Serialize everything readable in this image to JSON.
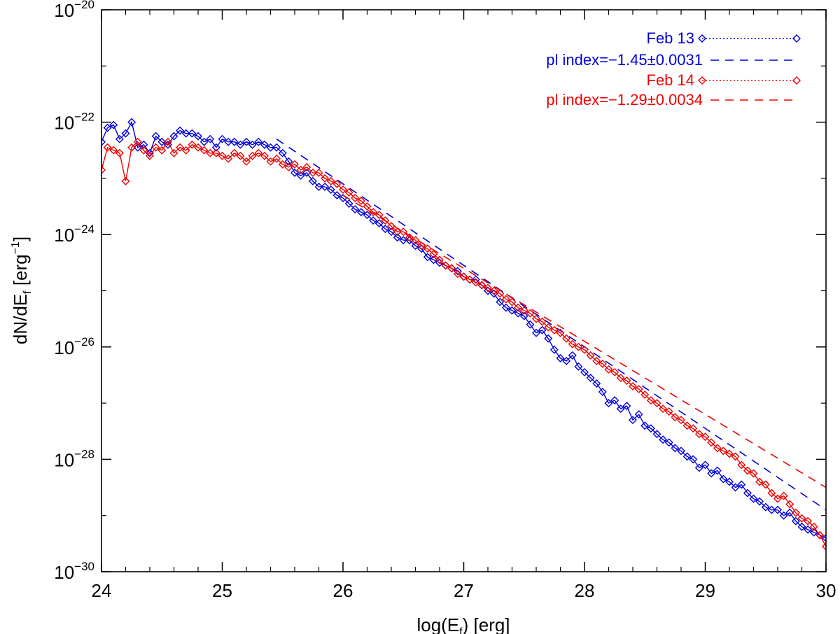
{
  "chart_data": {
    "type": "line",
    "title": "",
    "xlabel": "log(E_f) [erg]",
    "ylabel": "dN/dE_f [erg^-1]",
    "xlim": [
      24,
      30
    ],
    "ylim_log10": [
      -30,
      -20
    ],
    "x_ticks": [
      "24",
      "25",
      "26",
      "27",
      "28",
      "29",
      "30"
    ],
    "y_tick_base": "10",
    "y_ticks_exp": [
      "-30",
      "-28",
      "-26",
      "-24",
      "-22",
      "-20"
    ],
    "grid": false,
    "legend_position": "top-right",
    "series": [
      {
        "name": "Feb 13",
        "color": "#0000dd",
        "marker": "diamond",
        "fit_label": "pl index=−1.45±0.0031",
        "fit": {
          "x": [
            25.45,
            30.0
          ],
          "log10_y": [
            -22.3,
            -28.9
          ]
        },
        "points": [
          [
            24.0,
            -22.35
          ],
          [
            24.05,
            -22.1
          ],
          [
            24.1,
            -22.05
          ],
          [
            24.15,
            -22.3
          ],
          [
            24.2,
            -22.2
          ],
          [
            24.25,
            -22.0
          ],
          [
            24.3,
            -22.45
          ],
          [
            24.35,
            -22.4
          ],
          [
            24.4,
            -22.55
          ],
          [
            24.45,
            -22.25
          ],
          [
            24.5,
            -22.35
          ],
          [
            24.55,
            -22.4
          ],
          [
            24.6,
            -22.25
          ],
          [
            24.65,
            -22.15
          ],
          [
            24.7,
            -22.2
          ],
          [
            24.75,
            -22.2
          ],
          [
            24.8,
            -22.25
          ],
          [
            24.85,
            -22.35
          ],
          [
            24.9,
            -22.3
          ],
          [
            24.95,
            -22.45
          ],
          [
            25.0,
            -22.3
          ],
          [
            25.05,
            -22.35
          ],
          [
            25.1,
            -22.35
          ],
          [
            25.15,
            -22.4
          ],
          [
            25.2,
            -22.35
          ],
          [
            25.25,
            -22.4
          ],
          [
            25.3,
            -22.35
          ],
          [
            25.35,
            -22.4
          ],
          [
            25.4,
            -22.45
          ],
          [
            25.45,
            -22.45
          ],
          [
            25.5,
            -22.55
          ],
          [
            25.55,
            -22.7
          ],
          [
            25.6,
            -22.9
          ],
          [
            25.65,
            -22.95
          ],
          [
            25.7,
            -22.9
          ],
          [
            25.75,
            -23.05
          ],
          [
            25.8,
            -23.15
          ],
          [
            25.85,
            -23.15
          ],
          [
            25.9,
            -23.2
          ],
          [
            25.95,
            -23.3
          ],
          [
            26.0,
            -23.35
          ],
          [
            26.05,
            -23.45
          ],
          [
            26.1,
            -23.55
          ],
          [
            26.15,
            -23.6
          ],
          [
            26.2,
            -23.65
          ],
          [
            26.25,
            -23.75
          ],
          [
            26.3,
            -23.8
          ],
          [
            26.35,
            -23.9
          ],
          [
            26.4,
            -23.95
          ],
          [
            26.45,
            -24.05
          ],
          [
            26.5,
            -24.1
          ],
          [
            26.55,
            -24.1
          ],
          [
            26.6,
            -24.2
          ],
          [
            26.65,
            -24.25
          ],
          [
            26.7,
            -24.4
          ],
          [
            26.75,
            -24.45
          ],
          [
            26.8,
            -24.5
          ],
          [
            26.85,
            -24.55
          ],
          [
            26.9,
            -24.6
          ],
          [
            26.95,
            -24.65
          ],
          [
            27.0,
            -24.75
          ],
          [
            27.05,
            -24.8
          ],
          [
            27.1,
            -24.8
          ],
          [
            27.15,
            -24.9
          ],
          [
            27.2,
            -25.0
          ],
          [
            27.25,
            -25.05
          ],
          [
            27.3,
            -25.2
          ],
          [
            27.35,
            -25.3
          ],
          [
            27.4,
            -25.35
          ],
          [
            27.45,
            -25.4
          ],
          [
            27.5,
            -25.45
          ],
          [
            27.55,
            -25.6
          ],
          [
            27.6,
            -25.75
          ],
          [
            27.65,
            -25.7
          ],
          [
            27.7,
            -25.85
          ],
          [
            27.75,
            -26.05
          ],
          [
            27.8,
            -26.2
          ],
          [
            27.85,
            -26.25
          ],
          [
            27.9,
            -26.15
          ],
          [
            27.95,
            -26.35
          ],
          [
            28.0,
            -26.45
          ],
          [
            28.05,
            -26.55
          ],
          [
            28.1,
            -26.65
          ],
          [
            28.15,
            -26.8
          ],
          [
            28.2,
            -27.0
          ],
          [
            28.25,
            -26.95
          ],
          [
            28.3,
            -27.1
          ],
          [
            28.35,
            -27.05
          ],
          [
            28.4,
            -27.3
          ],
          [
            28.45,
            -27.2
          ],
          [
            28.5,
            -27.4
          ],
          [
            28.55,
            -27.45
          ],
          [
            28.6,
            -27.55
          ],
          [
            28.65,
            -27.65
          ],
          [
            28.7,
            -27.7
          ],
          [
            28.75,
            -27.8
          ],
          [
            28.8,
            -27.85
          ],
          [
            28.85,
            -27.95
          ],
          [
            28.9,
            -28.0
          ],
          [
            28.95,
            -28.15
          ],
          [
            29.0,
            -28.1
          ],
          [
            29.05,
            -28.25
          ],
          [
            29.1,
            -28.2
          ],
          [
            29.15,
            -28.35
          ],
          [
            29.2,
            -28.4
          ],
          [
            29.25,
            -28.5
          ],
          [
            29.3,
            -28.45
          ],
          [
            29.35,
            -28.6
          ],
          [
            29.4,
            -28.7
          ],
          [
            29.45,
            -28.75
          ],
          [
            29.5,
            -28.85
          ],
          [
            29.55,
            -28.9
          ],
          [
            29.6,
            -28.9
          ],
          [
            29.65,
            -29.0
          ],
          [
            29.7,
            -28.95
          ],
          [
            29.75,
            -29.1
          ],
          [
            29.8,
            -29.2
          ],
          [
            29.85,
            -29.25
          ],
          [
            29.9,
            -29.3
          ],
          [
            29.95,
            -29.35
          ],
          [
            30.0,
            -29.4
          ]
        ]
      },
      {
        "name": "Feb 14",
        "color": "#ee0000",
        "marker": "diamond",
        "fit_label": "pl index=−1.29±0.0034",
        "fit": {
          "x": [
            26.0,
            30.0
          ],
          "log10_y": [
            -23.3,
            -28.5
          ]
        },
        "points": [
          [
            24.0,
            -22.85
          ],
          [
            24.05,
            -22.45
          ],
          [
            24.1,
            -22.5
          ],
          [
            24.15,
            -22.55
          ],
          [
            24.2,
            -23.05
          ],
          [
            24.25,
            -22.45
          ],
          [
            24.3,
            -22.35
          ],
          [
            24.35,
            -22.5
          ],
          [
            24.4,
            -22.6
          ],
          [
            24.45,
            -22.45
          ],
          [
            24.5,
            -22.5
          ],
          [
            24.55,
            -22.35
          ],
          [
            24.6,
            -22.55
          ],
          [
            24.65,
            -22.45
          ],
          [
            24.7,
            -22.5
          ],
          [
            24.75,
            -22.4
          ],
          [
            24.8,
            -22.45
          ],
          [
            24.85,
            -22.5
          ],
          [
            24.9,
            -22.55
          ],
          [
            24.95,
            -22.55
          ],
          [
            25.0,
            -22.6
          ],
          [
            25.05,
            -22.65
          ],
          [
            25.1,
            -22.55
          ],
          [
            25.15,
            -22.6
          ],
          [
            25.2,
            -22.7
          ],
          [
            25.25,
            -22.6
          ],
          [
            25.3,
            -22.55
          ],
          [
            25.35,
            -22.6
          ],
          [
            25.4,
            -22.7
          ],
          [
            25.45,
            -22.65
          ],
          [
            25.5,
            -22.75
          ],
          [
            25.55,
            -22.8
          ],
          [
            25.6,
            -22.75
          ],
          [
            25.65,
            -22.85
          ],
          [
            25.7,
            -22.8
          ],
          [
            25.75,
            -22.9
          ],
          [
            25.8,
            -22.9
          ],
          [
            25.85,
            -23.0
          ],
          [
            25.9,
            -23.05
          ],
          [
            25.95,
            -23.1
          ],
          [
            26.0,
            -23.2
          ],
          [
            26.05,
            -23.25
          ],
          [
            26.1,
            -23.35
          ],
          [
            26.15,
            -23.4
          ],
          [
            26.2,
            -23.5
          ],
          [
            26.25,
            -23.6
          ],
          [
            26.3,
            -23.65
          ],
          [
            26.35,
            -23.75
          ],
          [
            26.4,
            -23.85
          ],
          [
            26.45,
            -23.95
          ],
          [
            26.5,
            -23.95
          ],
          [
            26.55,
            -24.05
          ],
          [
            26.6,
            -24.1
          ],
          [
            26.65,
            -24.2
          ],
          [
            26.7,
            -24.25
          ],
          [
            26.75,
            -24.35
          ],
          [
            26.8,
            -24.45
          ],
          [
            26.85,
            -24.55
          ],
          [
            26.9,
            -24.6
          ],
          [
            26.95,
            -24.7
          ],
          [
            27.0,
            -24.75
          ],
          [
            27.05,
            -24.8
          ],
          [
            27.1,
            -24.85
          ],
          [
            27.15,
            -24.9
          ],
          [
            27.2,
            -24.95
          ],
          [
            27.25,
            -25.0
          ],
          [
            27.3,
            -25.05
          ],
          [
            27.35,
            -25.15
          ],
          [
            27.4,
            -25.2
          ],
          [
            27.45,
            -25.3
          ],
          [
            27.5,
            -25.35
          ],
          [
            27.55,
            -25.4
          ],
          [
            27.6,
            -25.5
          ],
          [
            27.65,
            -25.55
          ],
          [
            27.7,
            -25.65
          ],
          [
            27.75,
            -25.7
          ],
          [
            27.8,
            -25.75
          ],
          [
            27.85,
            -25.85
          ],
          [
            27.9,
            -25.95
          ],
          [
            27.95,
            -26.0
          ],
          [
            28.0,
            -26.05
          ],
          [
            28.05,
            -26.15
          ],
          [
            28.1,
            -26.25
          ],
          [
            28.15,
            -26.3
          ],
          [
            28.2,
            -26.4
          ],
          [
            28.25,
            -26.45
          ],
          [
            28.3,
            -26.55
          ],
          [
            28.35,
            -26.6
          ],
          [
            28.4,
            -26.7
          ],
          [
            28.45,
            -26.75
          ],
          [
            28.5,
            -26.85
          ],
          [
            28.55,
            -26.95
          ],
          [
            28.6,
            -27.0
          ],
          [
            28.65,
            -27.1
          ],
          [
            28.7,
            -27.15
          ],
          [
            28.75,
            -27.25
          ],
          [
            28.8,
            -27.3
          ],
          [
            28.85,
            -27.4
          ],
          [
            28.9,
            -27.45
          ],
          [
            28.95,
            -27.55
          ],
          [
            29.0,
            -27.6
          ],
          [
            29.05,
            -27.7
          ],
          [
            29.1,
            -27.8
          ],
          [
            29.15,
            -27.85
          ],
          [
            29.2,
            -27.9
          ],
          [
            29.25,
            -27.95
          ],
          [
            29.3,
            -28.1
          ],
          [
            29.35,
            -28.2
          ],
          [
            29.4,
            -28.25
          ],
          [
            29.45,
            -28.4
          ],
          [
            29.5,
            -28.45
          ],
          [
            29.55,
            -28.6
          ],
          [
            29.6,
            -28.7
          ],
          [
            29.65,
            -28.65
          ],
          [
            29.7,
            -28.8
          ],
          [
            29.75,
            -28.95
          ],
          [
            29.8,
            -29.05
          ],
          [
            29.85,
            -29.1
          ],
          [
            29.9,
            -29.2
          ],
          [
            29.95,
            -29.35
          ],
          [
            30.0,
            -29.55
          ]
        ]
      }
    ]
  }
}
